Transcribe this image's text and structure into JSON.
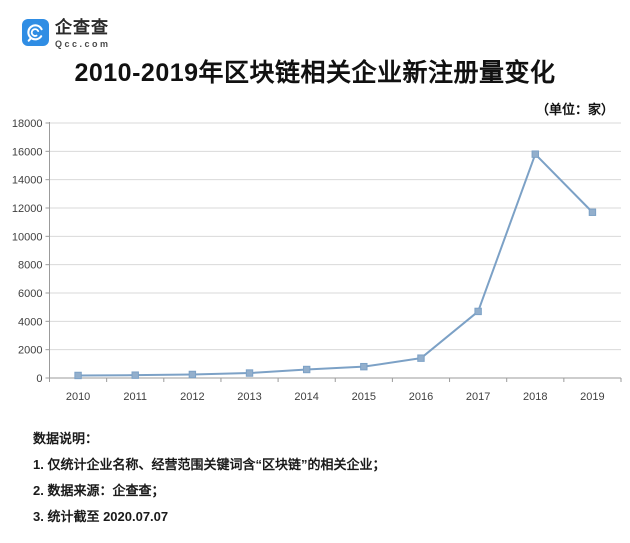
{
  "logo": {
    "name": "企查查",
    "domain": "Qcc.com"
  },
  "title": "2010-2019年区块链相关企业新注册量变化",
  "unit_label": "（单位：家）",
  "colors": {
    "logo_blue": "#2F8DE4",
    "line": "#7CA1C6",
    "marker_fill": "#93AFCC",
    "grid": "#D9D9D9",
    "axis": "#9B9B9B"
  },
  "chart_data": {
    "type": "line",
    "title": "2010-2019年区块链相关企业新注册量变化",
    "unit": "家",
    "categories": [
      "2010",
      "2011",
      "2012",
      "2013",
      "2014",
      "2015",
      "2016",
      "2017",
      "2018",
      "2019"
    ],
    "values": [
      180,
      200,
      250,
      350,
      600,
      800,
      1400,
      4700,
      15800,
      11700
    ],
    "xlabel": "",
    "ylabel": "",
    "ylim": [
      0,
      18000
    ],
    "ytick_step": 2000,
    "yticks": [
      "0",
      "2000",
      "4000",
      "6000",
      "8000",
      "10000",
      "12000",
      "14000",
      "16000",
      "18000"
    ],
    "grid": true,
    "legend": "none",
    "marker": "square",
    "line_color": "#7CA1C6",
    "marker_fill": "#93AFCC",
    "grid_color": "#D9D9D9",
    "axis_color": "#9B9B9B"
  },
  "notes": {
    "heading": "数据说明：",
    "items": [
      "1. 仅统计企业名称、经营范围关键词含“区块链”的相关企业；",
      "2. 数据来源：企查查；",
      "3. 统计截至 2020.07.07"
    ]
  }
}
